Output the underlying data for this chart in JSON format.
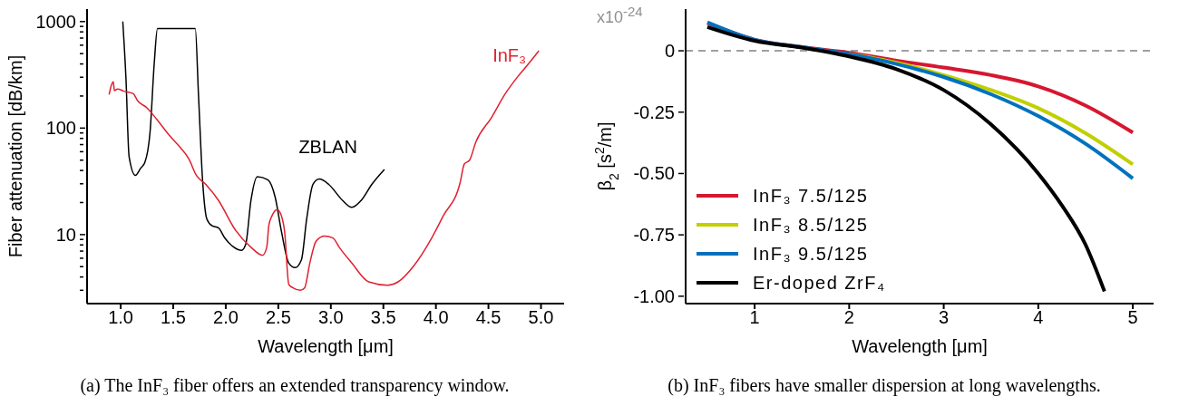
{
  "chart_data": [
    {
      "type": "line",
      "xlabel": "Wavelength [μm]",
      "ylabel": "Fiber attenuation  [dB/km]",
      "log": "y",
      "grid": false,
      "legend": false,
      "xlim": [
        0.68,
        5.22
      ],
      "xticks": [
        {
          "value": 1,
          "label": "1.0"
        },
        {
          "value": 1.5,
          "label": "1.5"
        },
        {
          "value": 2,
          "label": "2.0"
        },
        {
          "value": 2.5,
          "label": "2.5"
        },
        {
          "value": 3,
          "label": "3.0"
        },
        {
          "value": 3.5,
          "label": "3.5"
        },
        {
          "value": 4,
          "label": "4.0"
        },
        {
          "value": 4.5,
          "label": "4.5"
        },
        {
          "value": 5,
          "label": "5.0"
        }
      ],
      "ylim": [
        2.25,
        1310
      ],
      "yticks": [
        {
          "value": 3,
          "label": null
        },
        {
          "value": 4,
          "label": null
        },
        {
          "value": 5,
          "label": null
        },
        {
          "value": 6,
          "label": null
        },
        {
          "value": 7,
          "label": null
        },
        {
          "value": 8,
          "label": null
        },
        {
          "value": 9,
          "label": null
        },
        10,
        {
          "value": 20,
          "label": null
        },
        {
          "value": 30,
          "label": null
        },
        {
          "value": 40,
          "label": null
        },
        {
          "value": 50,
          "label": null
        },
        {
          "value": 60,
          "label": null
        },
        {
          "value": 70,
          "label": null
        },
        {
          "value": 80,
          "label": null
        },
        {
          "value": 90,
          "label": null
        },
        100,
        {
          "value": 200,
          "label": null
        },
        {
          "value": 300,
          "label": null
        },
        {
          "value": 400,
          "label": null
        },
        {
          "value": 500,
          "label": null
        },
        {
          "value": 600,
          "label": null
        },
        {
          "value": 700,
          "label": null
        },
        {
          "value": 800,
          "label": null
        },
        {
          "value": 900,
          "label": null
        },
        1000
      ],
      "series": [
        {
          "name": "ZBLAN",
          "color": "#000000",
          "x": [
            1.02,
            1.05,
            1.08,
            1.14,
            1.19,
            1.23,
            1.28,
            1.32,
            1.35,
            1.71,
            1.74,
            1.78,
            1.82,
            1.87,
            1.93,
            1.99,
            2.07,
            2.15,
            2.19,
            2.24,
            2.3,
            2.4,
            2.47,
            2.53,
            2.6,
            2.66,
            2.72,
            2.77,
            2.83,
            2.89,
            2.98,
            3.11,
            3.2,
            3.29,
            3.39,
            3.51
          ],
          "values": [
            1000,
            296,
            54,
            36,
            42,
            47.5,
            93,
            414,
            858,
            858,
            210,
            31.6,
            14,
            12.1,
            11.6,
            9.3,
            7.7,
            7.1,
            8.1,
            21,
            35,
            32.7,
            22.5,
            10.7,
            5.4,
            4.9,
            5.8,
            14,
            29.6,
            33.2,
            29.6,
            21,
            18,
            21,
            29.6,
            40.9
          ]
        },
        {
          "name": "InF₃",
          "color": "#e0202f",
          "x": [
            0.89,
            0.91,
            0.93,
            0.94,
            0.97,
            1.03,
            1.12,
            1.16,
            1.25,
            1.34,
            1.47,
            1.56,
            1.65,
            1.72,
            1.81,
            1.93,
            2.09,
            2.24,
            2.35,
            2.39,
            2.41,
            2.44,
            2.49,
            2.53,
            2.56,
            2.6,
            2.64,
            2.71,
            2.75,
            2.8,
            2.86,
            2.94,
            3.02,
            3.08,
            3.2,
            3.36,
            3.54,
            3.64,
            3.79,
            3.96,
            4.07,
            4.23,
            4.27,
            4.32,
            4.38,
            4.53,
            4.66,
            4.78,
            4.88,
            4.98
          ],
          "values": [
            206,
            250,
            272,
            225,
            233,
            222,
            210,
            181,
            155,
            122,
            84,
            67,
            51,
            36,
            29.6,
            21,
            11.1,
            7.6,
            6.4,
            7.6,
            12.2,
            15,
            17.2,
            15,
            10.7,
            3.4,
            3.16,
            3.0,
            3.16,
            5.4,
            8.7,
            9.7,
            9.3,
            7.6,
            5.4,
            3.6,
            3.35,
            3.6,
            5.1,
            9.3,
            15,
            30.6,
            46,
            50,
            74,
            126,
            210,
            305,
            400,
            532
          ]
        }
      ],
      "annotations": [
        "(a) The InF₃ fiber offers an extended transparency window."
      ]
    },
    {
      "type": "line",
      "xlabel": "Wavelength [μm]",
      "ylabel": "β$_{2}$ [s$^{2}$/m]",
      "grid": false,
      "legend": "bottom left",
      "xlim": [
        0.27,
        5.22
      ],
      "xticks": [
        1,
        2,
        3,
        4,
        5
      ],
      "ylim": [
        -1.03,
        0.17
      ],
      "yticks": [
        {
          "value": -1,
          "label": "-1.00"
        },
        {
          "value": -0.75,
          "label": "-0.75"
        },
        {
          "value": -0.5,
          "label": "-0.50"
        },
        {
          "value": -0.25,
          "label": "-0.25"
        },
        0
      ],
      "ref_lines": [
        {
          "axis": "y",
          "value": 0,
          "color": "#a0a0a0",
          "line_style": "dashed"
        }
      ],
      "series": [
        {
          "name": "InF₃  7.5/125",
          "color": "#d7172f",
          "x": [
            0.5,
            1,
            1.5,
            2,
            2.5,
            3,
            3.5,
            4,
            4.5,
            5
          ],
          "values": [
            0.113,
            0.045,
            0.015,
            -0.008,
            -0.04,
            -0.068,
            -0.099,
            -0.145,
            -0.223,
            -0.333
          ]
        },
        {
          "name": "InF₃  8.5/125",
          "color": "#c2cf00",
          "x": [
            2,
            2.5,
            3,
            3.5,
            4,
            4.5,
            5
          ],
          "values": [
            -0.013,
            -0.049,
            -0.099,
            -0.16,
            -0.234,
            -0.336,
            -0.463
          ]
        },
        {
          "name": "InF₃  9.5/125",
          "color": "#0072bd",
          "x": [
            0.5,
            1,
            1.5,
            2,
            2.5,
            3,
            3.5,
            4,
            4.5,
            5
          ],
          "values": [
            0.116,
            0.045,
            0.015,
            -0.014,
            -0.054,
            -0.107,
            -0.177,
            -0.266,
            -0.379,
            -0.52
          ]
        },
        {
          "name": "Er-doped ZrF₄",
          "color": "#000000",
          "x": [
            0.5,
            1,
            1.5,
            2,
            2.5,
            3,
            3.5,
            4,
            4.25,
            4.5,
            4.7
          ],
          "values": [
            0.097,
            0.041,
            0.013,
            -0.023,
            -0.075,
            -0.16,
            -0.3,
            -0.5,
            -0.63,
            -0.79,
            -0.98
          ]
        }
      ],
      "annotations": [
        "x10$^{-24}$",
        "(b) InF₃ fibers have smaller dispersion at long wavelengths."
      ]
    }
  ]
}
